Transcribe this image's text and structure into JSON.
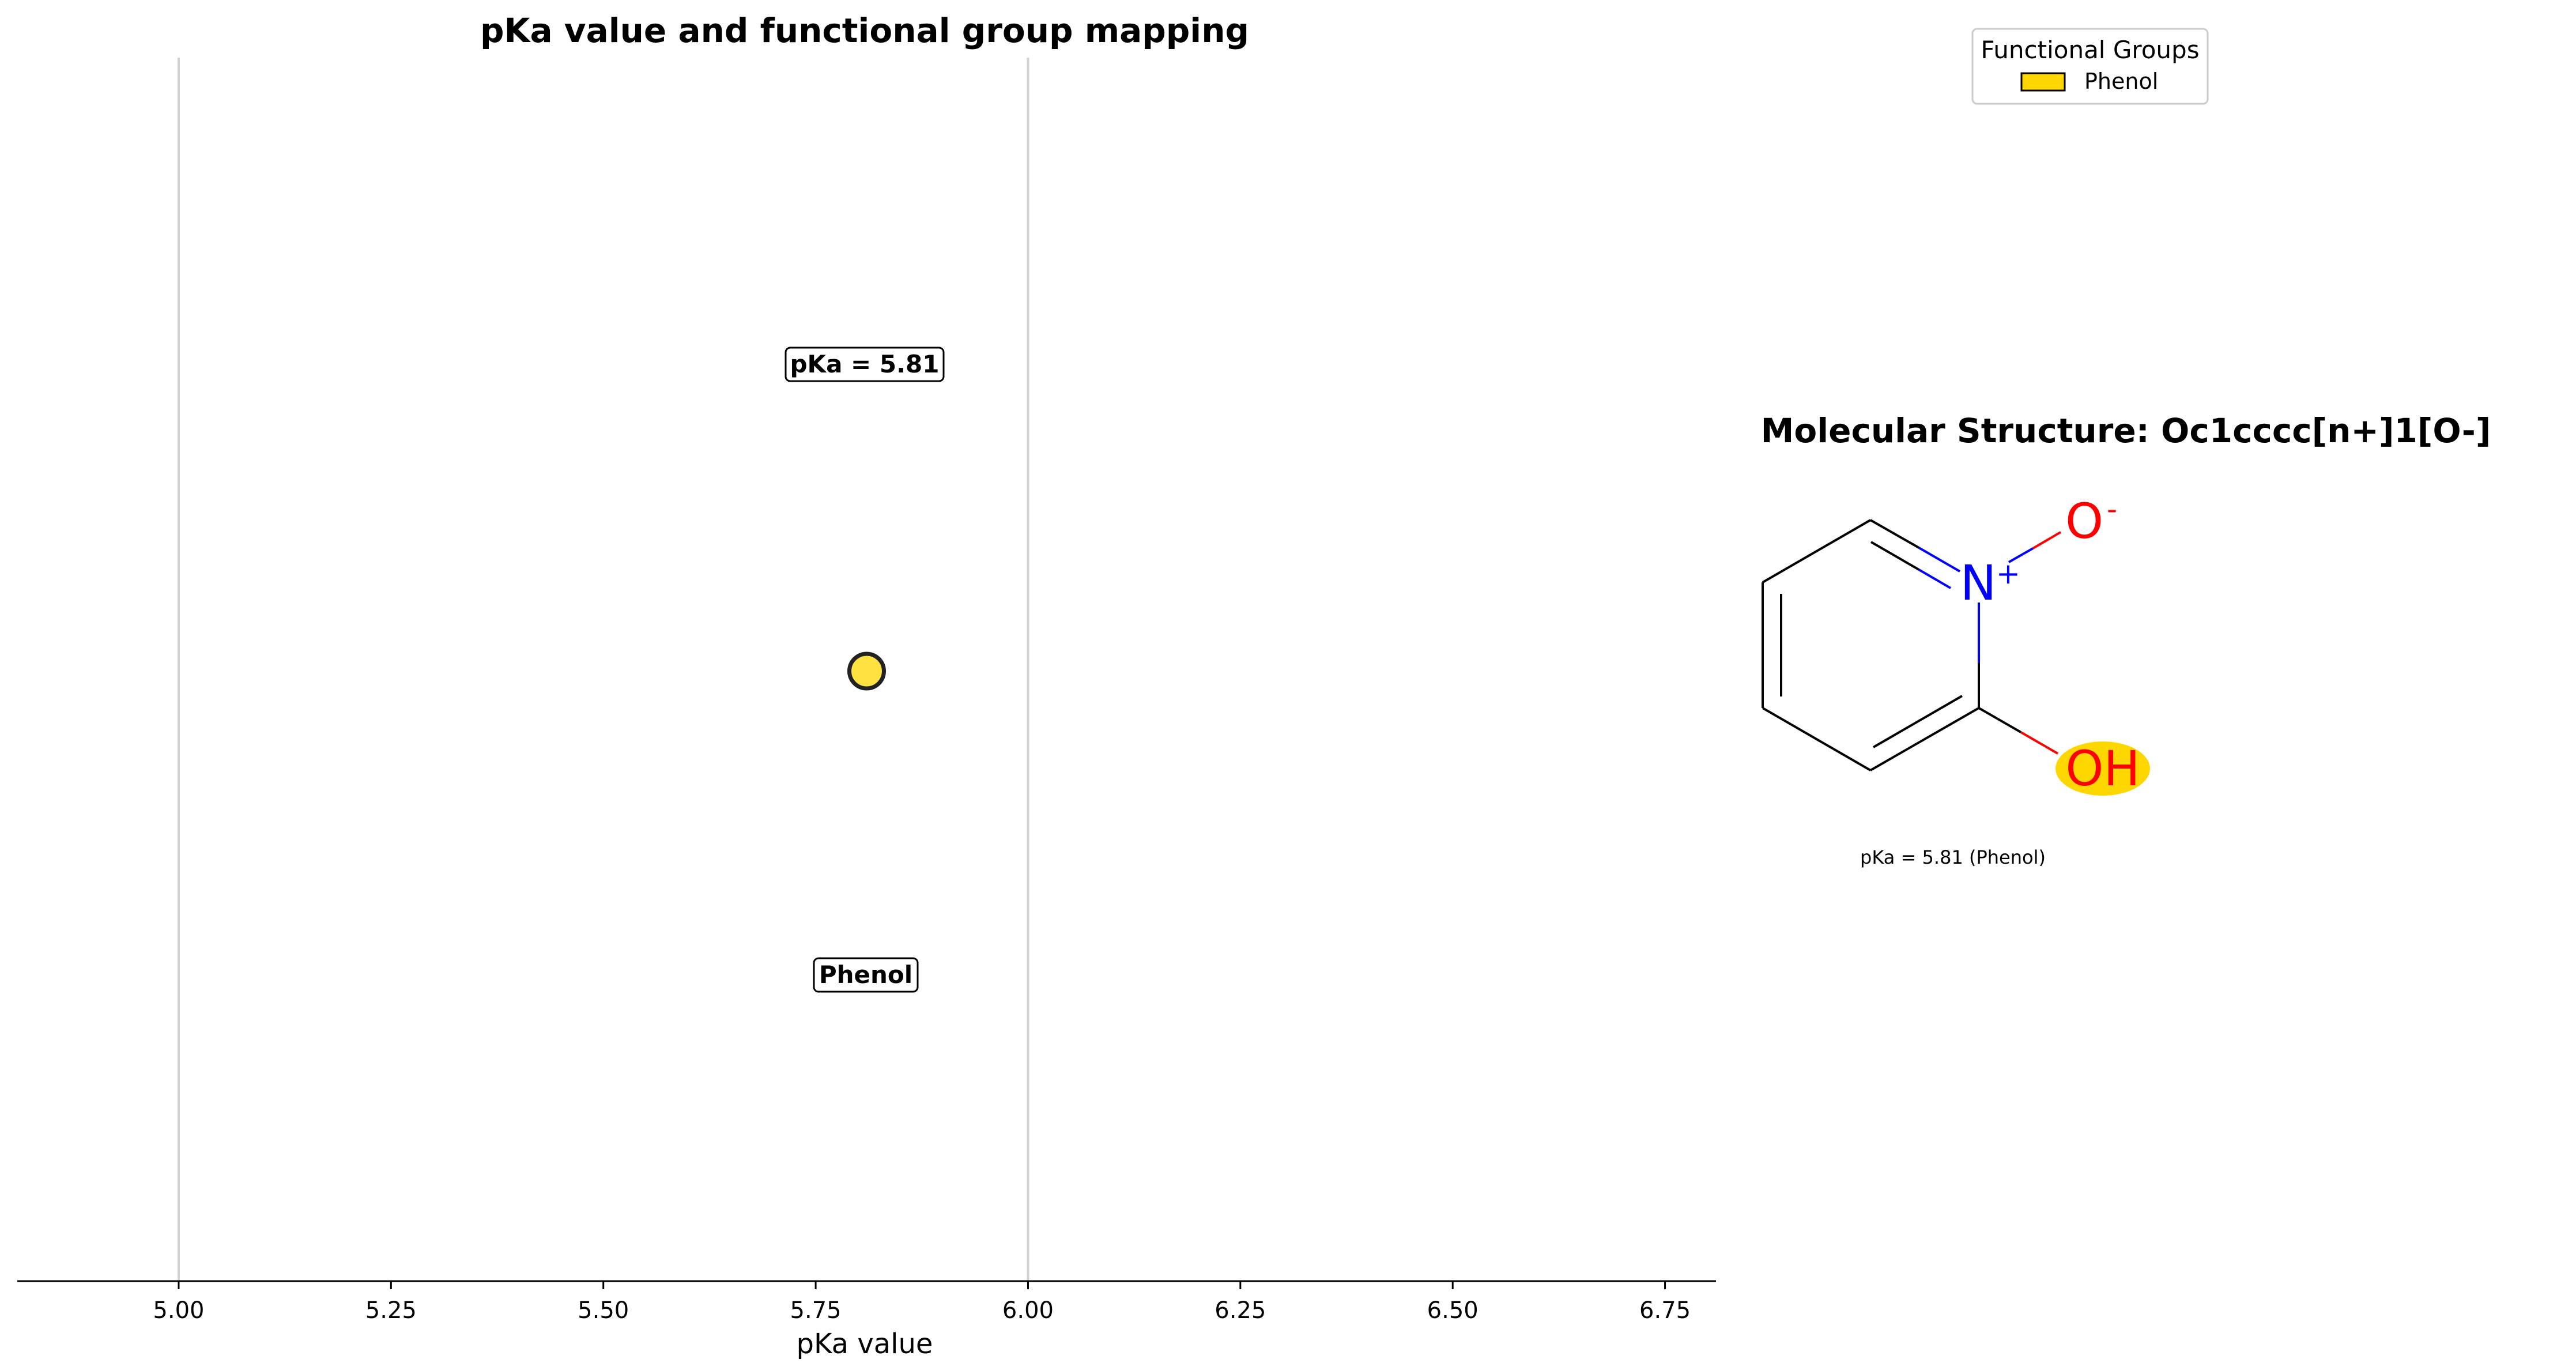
{
  "chart_data": [
    {
      "type": "scatter",
      "title": "pKa value and functional group mapping",
      "xlabel": "pKa value",
      "ylabel": "",
      "xlim": [
        4.81,
        6.81
      ],
      "xticks": [
        "5.00",
        "5.25",
        "5.50",
        "5.75",
        "6.00",
        "6.25",
        "6.50",
        "6.75"
      ],
      "grid": "vertical lines at 5.00 and 6.00",
      "points": [
        {
          "x": 5.81,
          "y": 0,
          "group": "Phenol",
          "color": "#FFD700"
        }
      ],
      "annotations": {
        "value_label": "pKa = 5.81",
        "group_label": "Phenol"
      }
    }
  ],
  "legend": {
    "title": "Functional Groups",
    "placement": "top-right",
    "items": [
      {
        "label": "Phenol",
        "color": "#FFD700"
      }
    ]
  },
  "structure": {
    "title": "Molecular Structure: Oc1cccc[n+]1[O-]",
    "atoms": {
      "nitrogen": "N",
      "nitrogen_charge": "+",
      "oxide": "O",
      "oxide_charge": "-",
      "hydroxyl": "OH"
    },
    "highlight_color": "#FFD700",
    "caption": "pKa = 5.81 (Phenol)"
  },
  "colors": {
    "nitrogen": "#0000FF",
    "oxygen": "#FF0000",
    "bond": "#000000",
    "grid": "#D3D3D3"
  }
}
